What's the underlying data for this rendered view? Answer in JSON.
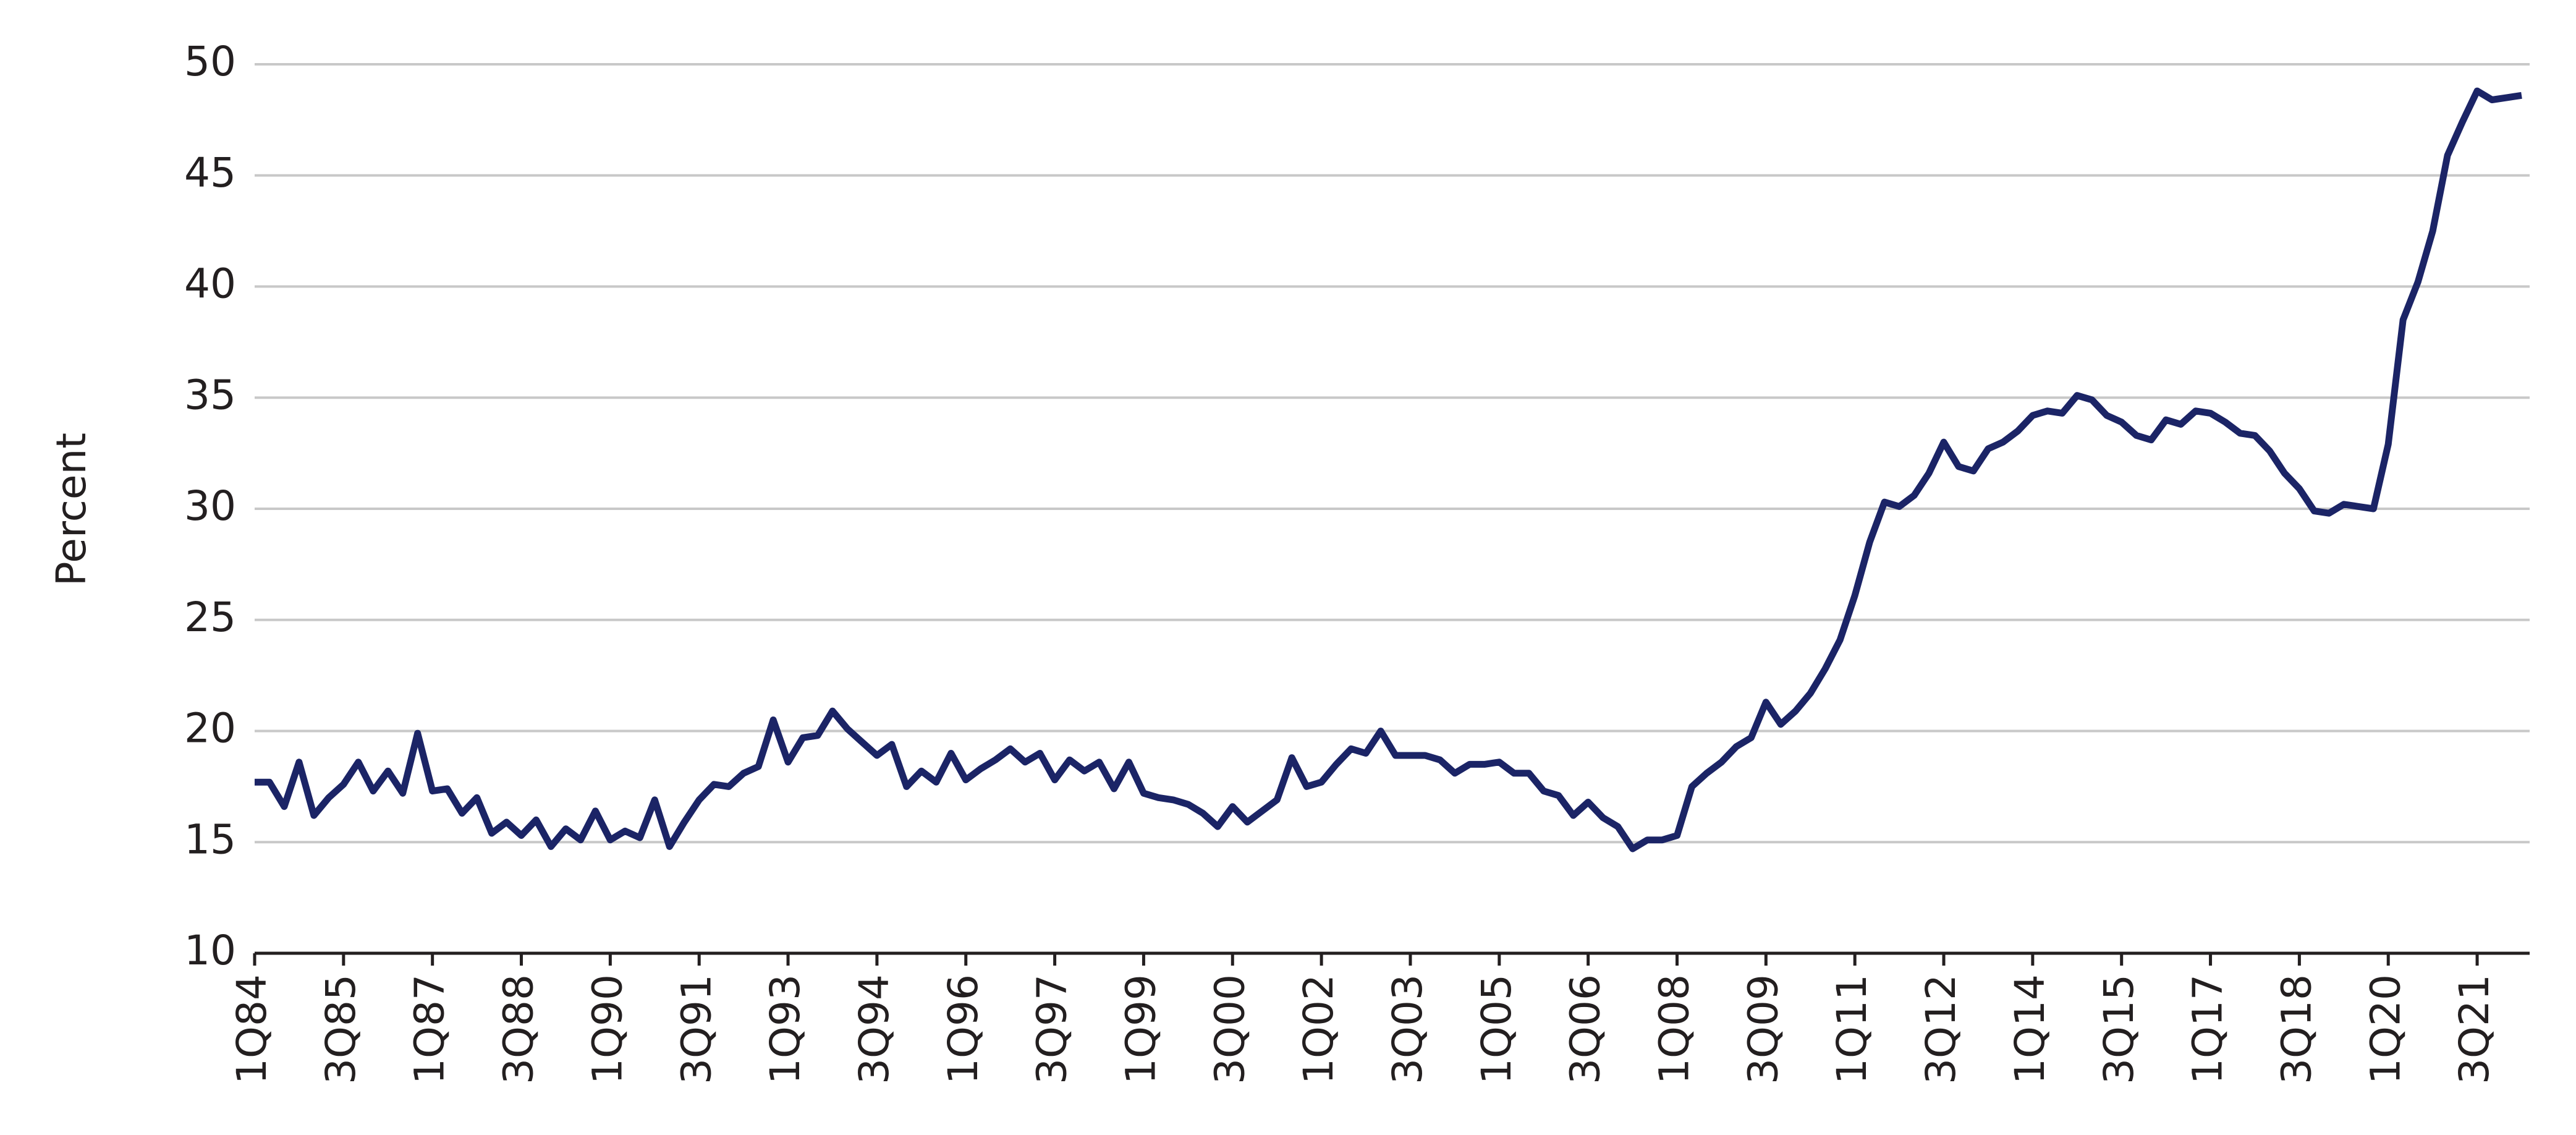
{
  "chart_data": {
    "type": "line",
    "y_label": "Percent",
    "categories": [
      "1Q84",
      null,
      null,
      null,
      null,
      null,
      "3Q85",
      null,
      null,
      null,
      null,
      null,
      "1Q87",
      null,
      null,
      null,
      null,
      null,
      "3Q88",
      null,
      null,
      null,
      null,
      null,
      "1Q90",
      null,
      null,
      null,
      null,
      null,
      "3Q91",
      null,
      null,
      null,
      null,
      null,
      "1Q93",
      null,
      null,
      null,
      null,
      null,
      "3Q94",
      null,
      null,
      null,
      null,
      null,
      "1Q96",
      null,
      null,
      null,
      null,
      null,
      "3Q97",
      null,
      null,
      null,
      null,
      null,
      "1Q99",
      null,
      null,
      null,
      null,
      null,
      "3Q00",
      null,
      null,
      null,
      null,
      null,
      "1Q02",
      null,
      null,
      null,
      null,
      null,
      "3Q03",
      null,
      null,
      null,
      null,
      null,
      "1Q05",
      null,
      null,
      null,
      null,
      null,
      "3Q06",
      null,
      null,
      null,
      null,
      null,
      "1Q08",
      null,
      null,
      null,
      null,
      null,
      "3Q09",
      null,
      null,
      null,
      null,
      null,
      "1Q11",
      null,
      null,
      null,
      null,
      null,
      "3Q12",
      null,
      null,
      null,
      null,
      null,
      "1Q14",
      null,
      null,
      null,
      null,
      null,
      "3Q15",
      null,
      null,
      null,
      null,
      null,
      "1Q17",
      null,
      null,
      null,
      null,
      null,
      "3Q18",
      null,
      null,
      null,
      null,
      null,
      "1Q20",
      null,
      null,
      null,
      null,
      null,
      "3Q21",
      null,
      null,
      null
    ],
    "series": [
      {
        "color": "#1b2466",
        "values": [
          17.7,
          17.7,
          16.6,
          18.6,
          16.2,
          17.0,
          17.6,
          18.6,
          17.3,
          18.2,
          17.2,
          19.9,
          17.3,
          17.4,
          16.3,
          17.0,
          15.4,
          15.9,
          15.3,
          16.0,
          14.8,
          15.6,
          15.1,
          16.4,
          15.1,
          15.5,
          15.2,
          16.9,
          14.8,
          15.9,
          16.9,
          17.6,
          17.5,
          18.1,
          18.4,
          20.5,
          18.6,
          19.7,
          19.8,
          20.9,
          20.1,
          19.5,
          18.9,
          19.4,
          17.5,
          18.2,
          17.7,
          19.0,
          17.8,
          18.3,
          18.7,
          19.2,
          18.6,
          19.0,
          17.8,
          18.7,
          18.2,
          18.6,
          17.4,
          18.6,
          17.2,
          17.0,
          16.9,
          16.7,
          16.3,
          15.7,
          16.6,
          15.9,
          16.4,
          16.9,
          18.8,
          17.5,
          17.7,
          18.5,
          19.2,
          19.0,
          20.0,
          18.9,
          18.9,
          18.9,
          18.7,
          18.1,
          18.5,
          18.5,
          18.6,
          18.1,
          18.1,
          17.3,
          17.1,
          16.2,
          16.8,
          16.1,
          15.7,
          14.7,
          15.1,
          15.1,
          15.3,
          17.5,
          18.1,
          18.6,
          19.3,
          19.7,
          21.3,
          20.3,
          20.9,
          21.7,
          22.8,
          24.1,
          26.1,
          28.5,
          30.3,
          30.1,
          30.6,
          31.6,
          33.0,
          31.9,
          31.7,
          32.7,
          33.0,
          33.5,
          34.2,
          34.4,
          34.3,
          35.1,
          34.9,
          34.2,
          33.9,
          33.3,
          33.1,
          34.0,
          33.8,
          34.4,
          34.3,
          33.9,
          33.4,
          33.3,
          32.6,
          31.6,
          30.9,
          29.9,
          29.8,
          30.2,
          30.1,
          30.0,
          32.9,
          38.5,
          40.2,
          42.5,
          45.9,
          47.4,
          48.8,
          48.4,
          48.5,
          48.6
        ]
      }
    ],
    "ylim": [
      10,
      50
    ],
    "yticks": [
      10,
      15,
      20,
      25,
      30,
      35,
      40,
      45,
      50
    ],
    "grid": true
  }
}
